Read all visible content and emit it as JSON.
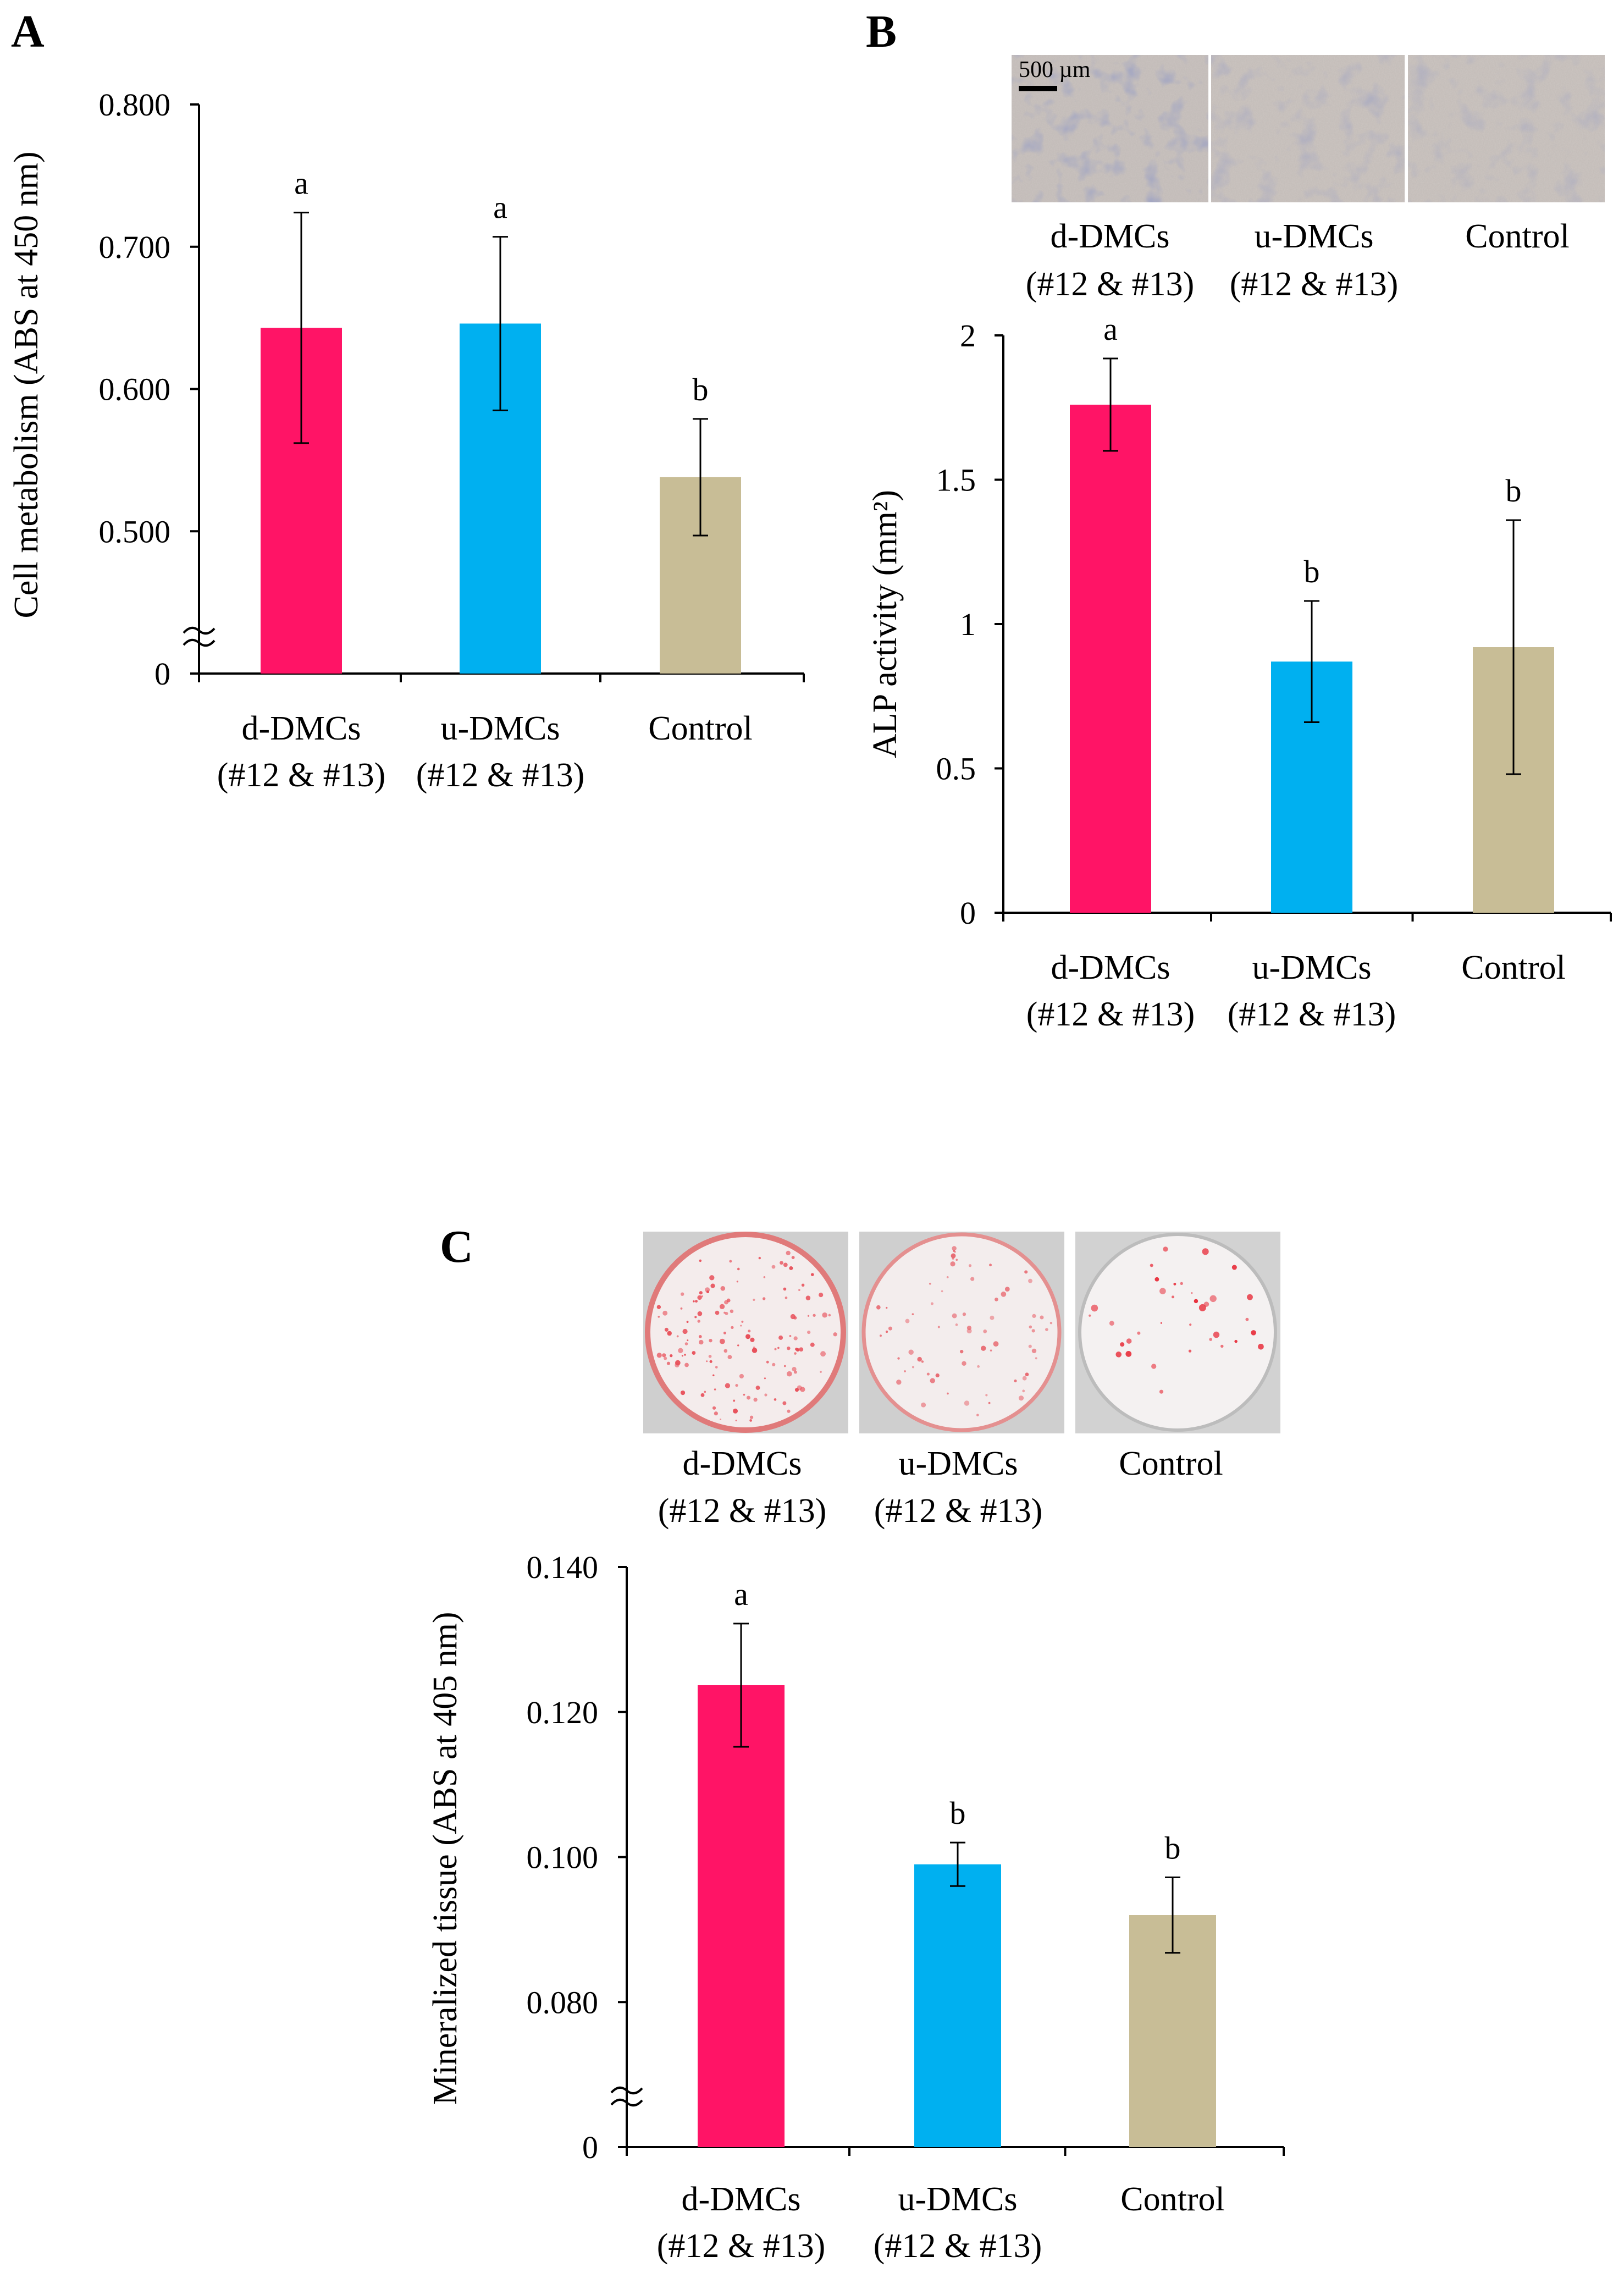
{
  "colors": {
    "d_dmcs": "#ff1466",
    "u_dmcs": "#00b0f0",
    "control": "#c8bd96",
    "axis": "#000000"
  },
  "chart_data": [
    {
      "id": "A",
      "panel_label": "A",
      "type": "bar",
      "categories": [
        {
          "line1": "d-DMCs",
          "line2": "(#12 & #13)"
        },
        {
          "line1": "u-DMCs",
          "line2": "(#12 & #13)"
        },
        {
          "line1": "Control",
          "line2": ""
        }
      ],
      "values": [
        0.643,
        0.646,
        0.538
      ],
      "errors": [
        0.081,
        0.061,
        0.041
      ],
      "significance": [
        "a",
        "a",
        "b"
      ],
      "ylabel": "Cell metabolism (ABS at 450 nm)",
      "ylim": [
        0.4,
        0.8
      ],
      "yticks": [
        0.5,
        0.6,
        0.7,
        0.8
      ],
      "ytick_labels": [
        "0",
        "0.500",
        "0.600",
        "0.700",
        "0.800"
      ],
      "axis_break": true
    },
    {
      "id": "B",
      "panel_label": "B",
      "type": "bar",
      "categories": [
        {
          "line1": "d-DMCs",
          "line2": "(#12 & #13)"
        },
        {
          "line1": "u-DMCs",
          "line2": "(#12 & #13)"
        },
        {
          "line1": "Control",
          "line2": ""
        }
      ],
      "values": [
        1.76,
        0.87,
        0.92
      ],
      "errors": [
        0.16,
        0.21,
        0.44
      ],
      "significance": [
        "a",
        "b",
        "b"
      ],
      "ylabel": "ALP activity (mm²)",
      "ylim": [
        0,
        2
      ],
      "yticks": [
        0,
        0.5,
        1,
        1.5,
        2
      ],
      "ytick_labels": [
        "0",
        "0.5",
        "1",
        "1.5",
        "2"
      ],
      "axis_break": false,
      "micrograph_scale_label": "500 µm",
      "micrograph_labels": [
        {
          "line1": "d-DMCs",
          "line2": "(#12 & #13)"
        },
        {
          "line1": "u-DMCs",
          "line2": "(#12 & #13)"
        },
        {
          "line1": "Control",
          "line2": ""
        }
      ]
    },
    {
      "id": "C",
      "panel_label": "C",
      "type": "bar",
      "categories": [
        {
          "line1": "d-DMCs",
          "line2": "(#12 & #13)"
        },
        {
          "line1": "u-DMCs",
          "line2": "(#12 & #13)"
        },
        {
          "line1": "Control",
          "line2": ""
        }
      ],
      "values": [
        0.1237,
        0.099,
        0.092
      ],
      "errors": [
        0.0085,
        0.003,
        0.0052
      ],
      "significance": [
        "a",
        "b",
        "b"
      ],
      "ylabel": "Mineralized tissue (ABS at 405 nm)",
      "ylim": [
        0.06,
        0.14
      ],
      "yticks": [
        0.08,
        0.1,
        0.12,
        0.14
      ],
      "ytick_labels": [
        "0",
        "0.080",
        "0.100",
        "0.120",
        "0.140"
      ],
      "axis_break": true,
      "well_labels": [
        {
          "line1": "d-DMCs",
          "line2": "(#12 & #13)"
        },
        {
          "line1": "u-DMCs",
          "line2": "(#12 & #13)"
        },
        {
          "line1": "Control",
          "line2": ""
        }
      ]
    }
  ]
}
